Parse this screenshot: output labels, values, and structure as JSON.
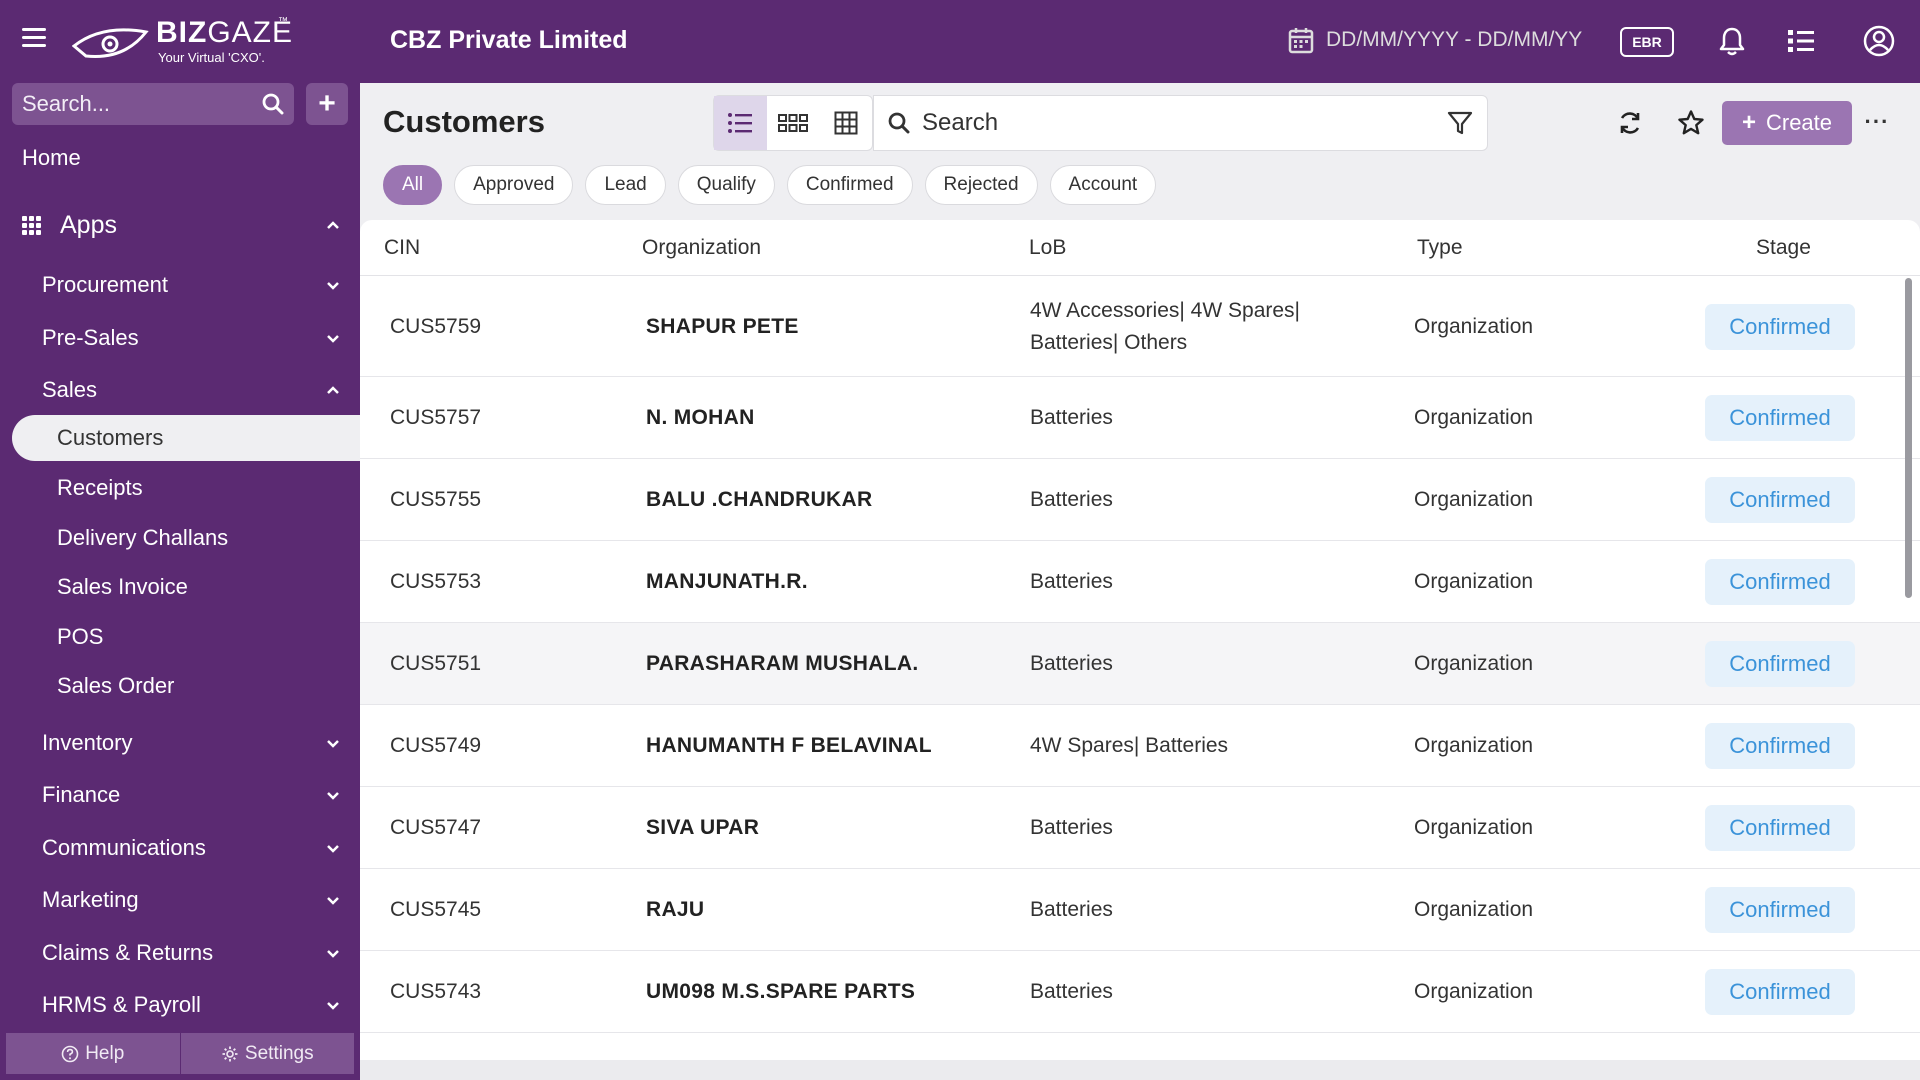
{
  "app": {
    "logo_text_bold": "BIZ",
    "logo_text_light": "GAZE",
    "logo_tm": "™",
    "logo_tagline": "Your Virtual 'CXO'.",
    "company_name": "CBZ Private Limited",
    "date_range_placeholder": "DD/MM/YYYY - DD/MM/YY",
    "branch_badge": "EBR"
  },
  "sidebar": {
    "search_placeholder": "Search...",
    "home": "Home",
    "apps": "Apps",
    "items": [
      {
        "label": "Procurement",
        "expanded": false
      },
      {
        "label": "Pre-Sales",
        "expanded": false
      },
      {
        "label": "Sales",
        "expanded": true
      },
      {
        "label": "Inventory",
        "expanded": false
      },
      {
        "label": "Finance",
        "expanded": false
      },
      {
        "label": "Communications",
        "expanded": false
      },
      {
        "label": "Marketing",
        "expanded": false
      },
      {
        "label": "Claims & Returns",
        "expanded": false
      },
      {
        "label": "HRMS & Payroll",
        "expanded": false
      }
    ],
    "sales_children": [
      "Customers",
      "Receipts",
      "Delivery Challans",
      "Sales Invoice",
      "POS",
      "Sales Order"
    ],
    "active_child": "Customers",
    "help": "Help",
    "settings": "Settings"
  },
  "page": {
    "title": "Customers",
    "search_placeholder": "Search",
    "create_label": "Create",
    "more_label": "···",
    "active_view": "list",
    "filters": [
      "All",
      "Approved",
      "Lead",
      "Qualify",
      "Confirmed",
      "Rejected",
      "Account"
    ],
    "active_filter": "All"
  },
  "table": {
    "columns": [
      "CIN",
      "Organization",
      "LoB",
      "Type",
      "Stage"
    ],
    "rows": [
      {
        "cin": "CUS5759",
        "org": "SHAPUR PETE",
        "lob": "4W Accessories| 4W Spares| Batteries| Others",
        "type": "Organization",
        "stage": "Confirmed"
      },
      {
        "cin": "CUS5757",
        "org": "N. MOHAN",
        "lob": "Batteries",
        "type": "Organization",
        "stage": "Confirmed"
      },
      {
        "cin": "CUS5755",
        "org": "BALU .CHANDRUKAR",
        "lob": "Batteries",
        "type": "Organization",
        "stage": "Confirmed"
      },
      {
        "cin": "CUS5753",
        "org": "MANJUNATH.R.",
        "lob": "Batteries",
        "type": "Organization",
        "stage": "Confirmed"
      },
      {
        "cin": "CUS5751",
        "org": "PARASHARAM MUSHALA.",
        "lob": "Batteries",
        "type": "Organization",
        "stage": "Confirmed"
      },
      {
        "cin": "CUS5749",
        "org": "HANUMANTH F BELAVINAL",
        "lob": "4W Spares| Batteries",
        "type": "Organization",
        "stage": "Confirmed"
      },
      {
        "cin": "CUS5747",
        "org": "SIVA UPAR",
        "lob": "Batteries",
        "type": "Organization",
        "stage": "Confirmed"
      },
      {
        "cin": "CUS5745",
        "org": "RAJU",
        "lob": "Batteries",
        "type": "Organization",
        "stage": "Confirmed"
      },
      {
        "cin": "CUS5743",
        "org": "UM098 M.S.SPARE PARTS",
        "lob": "Batteries",
        "type": "Organization",
        "stage": "Confirmed"
      }
    ],
    "hovered_row": 4
  },
  "colors": {
    "brand": "#5b2a72",
    "accent": "#9b75b2",
    "badge_bg": "#e5f1fb",
    "badge_text": "#3b93d9"
  }
}
